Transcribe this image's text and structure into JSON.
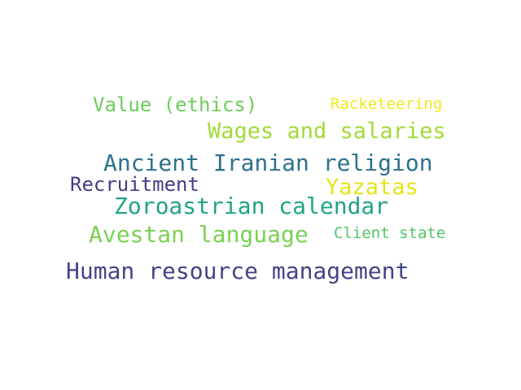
{
  "words": [
    {
      "text": "Value (ethics)",
      "color": "#6ccd5a"
    },
    {
      "text": "Racketeering",
      "color": "#f4e61e"
    },
    {
      "text": "Wages and salaries",
      "color": "#a2da37"
    },
    {
      "text": "Ancient Iranian religion",
      "color": "#2c718e"
    },
    {
      "text": "Recruitment",
      "color": "#433e85"
    },
    {
      "text": "Yazatas",
      "color": "#e5e419"
    },
    {
      "text": "Zoroastrian calendar",
      "color": "#20a486"
    },
    {
      "text": "Avestan language",
      "color": "#7ad151"
    },
    {
      "text": "Client state",
      "color": "#52c569"
    },
    {
      "text": "Human resource management",
      "color": "#414487"
    }
  ]
}
